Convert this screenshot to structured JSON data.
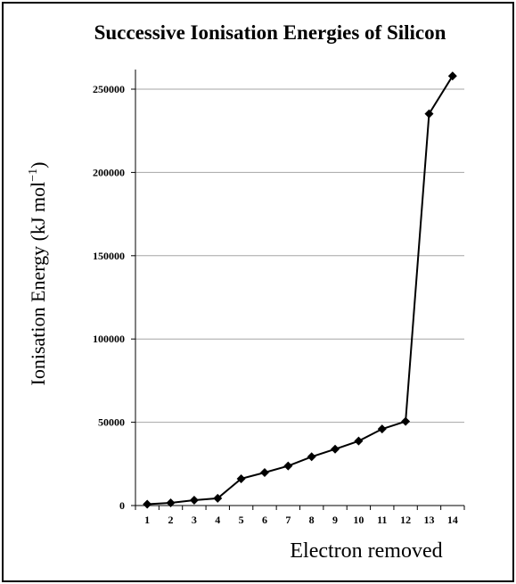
{
  "chart_data": {
    "type": "line",
    "title": "Successive Ionisation Energies of Silicon",
    "xlabel": "Electron removed",
    "ylabel_main": "Ionisation Energy (kJ mol",
    "ylabel_sup": "−1",
    "ylabel_close": ")",
    "categories": [
      "1",
      "2",
      "3",
      "4",
      "5",
      "6",
      "7",
      "8",
      "9",
      "10",
      "11",
      "12",
      "13",
      "14"
    ],
    "series": [
      {
        "values": [
          786,
          1577,
          3232,
          4356,
          16091,
          19805,
          23780,
          29287,
          33878,
          38726,
          45962,
          50502,
          235196,
          257923
        ]
      }
    ],
    "ylim": [
      0,
      250000
    ],
    "yticks": [
      0,
      50000,
      100000,
      150000,
      200000,
      250000
    ],
    "ytick_labels": [
      "0",
      "50000",
      "100000",
      "150000",
      "200000",
      "250000"
    ],
    "grid": true,
    "legend": "none",
    "colors": {
      "line": "#000000",
      "marker": "#000000",
      "grid": "#a6a6a6",
      "axis": "#000000"
    },
    "marker": "diamond"
  }
}
